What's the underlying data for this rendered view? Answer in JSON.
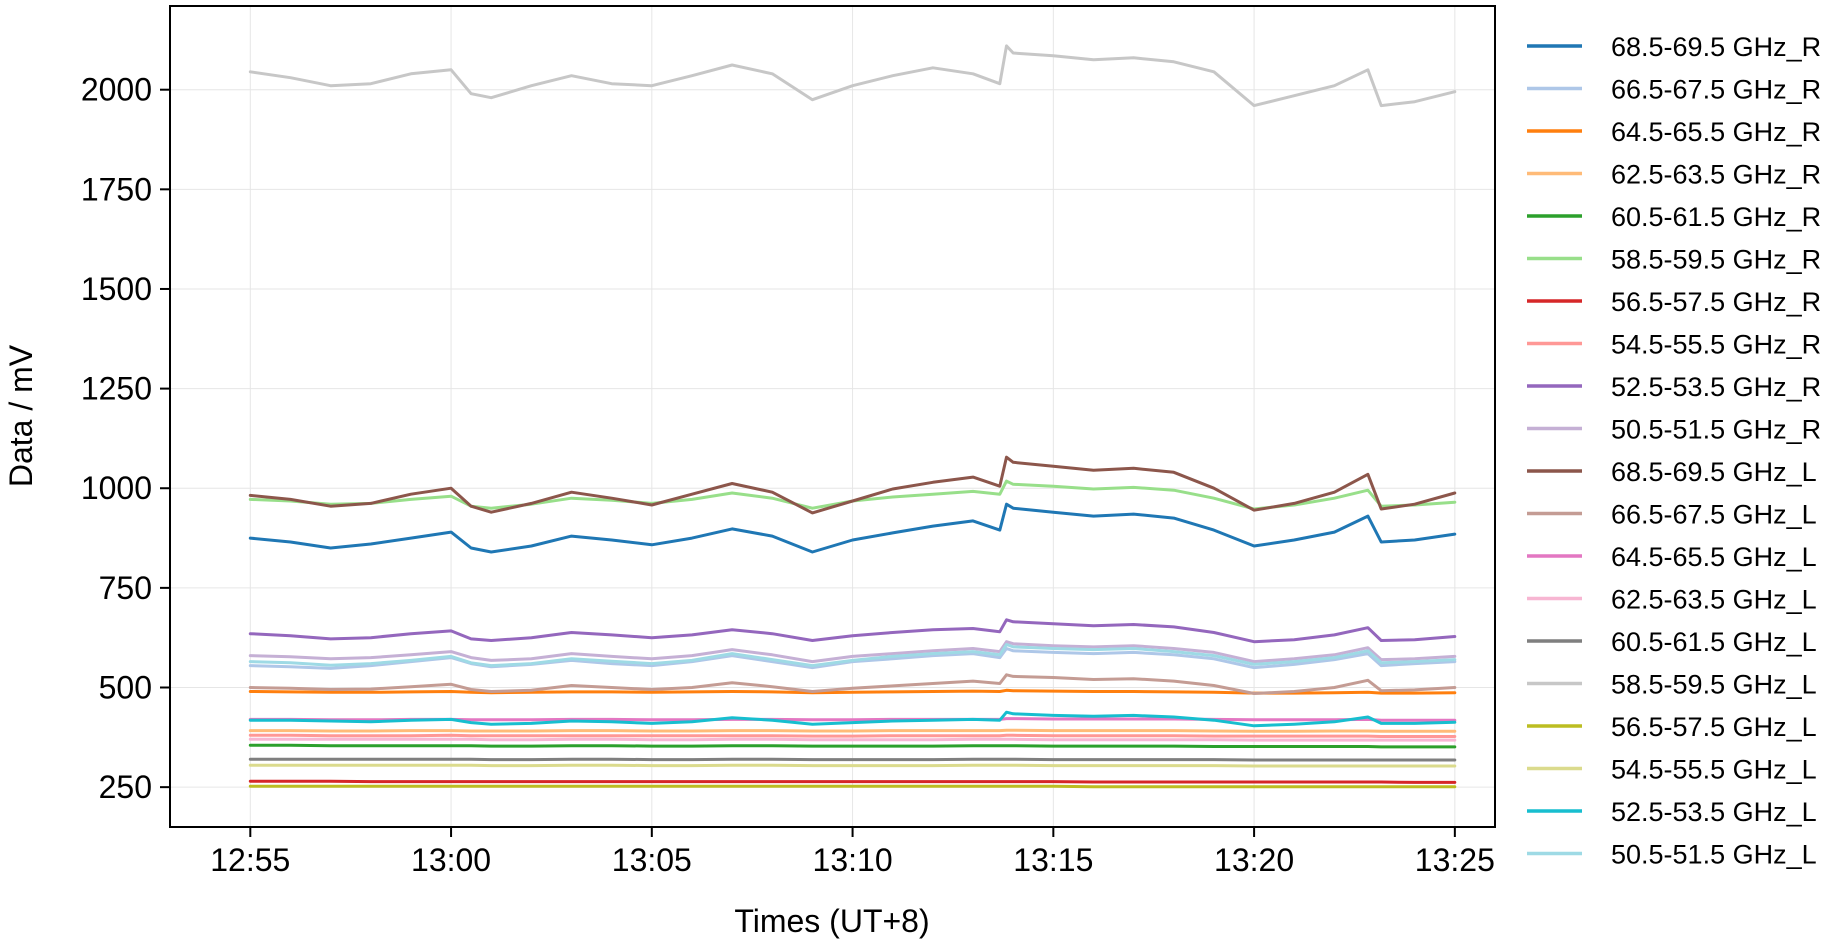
{
  "chart_data": {
    "type": "line",
    "xlabel": "Times (UT+8)",
    "ylabel": "Data / mV",
    "x_unit": "time (HH:MM)",
    "xlim": [
      "12:53",
      "13:26"
    ],
    "ylim": [
      150,
      2210
    ],
    "x_ticks": [
      "12:55",
      "13:00",
      "13:05",
      "13:10",
      "13:15",
      "13:20",
      "13:25"
    ],
    "y_ticks": [
      250,
      500,
      750,
      1000,
      1250,
      1500,
      1750,
      2000
    ],
    "grid": true,
    "legend_position": "right, outside plot",
    "x_sample": [
      "12:55",
      "12:56",
      "12:57",
      "12:58",
      "12:59",
      "13:00",
      "13:00:30",
      "13:01",
      "13:02",
      "13:03",
      "13:04",
      "13:05",
      "13:06",
      "13:07",
      "13:08",
      "13:09",
      "13:10",
      "13:11",
      "13:12",
      "13:13",
      "13:13:40",
      "13:13:50",
      "13:14",
      "13:15",
      "13:16",
      "13:17",
      "13:18",
      "13:19",
      "13:20",
      "13:21",
      "13:22",
      "13:22:50",
      "13:23:10",
      "13:24",
      "13:25"
    ],
    "series": [
      {
        "name": "68.5-69.5 GHz_R",
        "color": "#1f77b4",
        "values": [
          875,
          865,
          850,
          860,
          875,
          890,
          850,
          840,
          855,
          880,
          870,
          858,
          875,
          898,
          880,
          840,
          870,
          888,
          905,
          918,
          895,
          960,
          950,
          940,
          930,
          935,
          925,
          895,
          855,
          870,
          890,
          930,
          865,
          870,
          885
        ]
      },
      {
        "name": "66.5-67.5 GHz_R",
        "color": "#aec7e8",
        "values": [
          555,
          552,
          548,
          555,
          565,
          575,
          560,
          552,
          558,
          568,
          560,
          555,
          565,
          580,
          565,
          550,
          565,
          572,
          580,
          585,
          575,
          598,
          592,
          588,
          585,
          588,
          582,
          572,
          550,
          558,
          570,
          585,
          555,
          560,
          565
        ]
      },
      {
        "name": "64.5-65.5 GHz_R",
        "color": "#ff7f0e",
        "values": [
          490,
          489,
          488,
          488,
          489,
          490,
          488,
          487,
          488,
          489,
          489,
          488,
          489,
          490,
          489,
          487,
          488,
          489,
          490,
          491,
          490,
          493,
          492,
          491,
          490,
          490,
          489,
          488,
          486,
          486,
          487,
          488,
          486,
          486,
          487
        ]
      },
      {
        "name": "62.5-63.5 GHz_R",
        "color": "#ffbb78",
        "values": [
          392,
          392,
          391,
          391,
          392,
          392,
          391,
          391,
          391,
          392,
          392,
          391,
          391,
          392,
          392,
          391,
          391,
          392,
          392,
          392,
          392,
          393,
          393,
          392,
          392,
          392,
          392,
          391,
          390,
          390,
          391,
          391,
          390,
          390,
          390
        ]
      },
      {
        "name": "60.5-61.5 GHz_R",
        "color": "#2ca02c",
        "values": [
          355,
          355,
          354,
          354,
          354,
          354,
          354,
          353,
          353,
          354,
          354,
          353,
          353,
          354,
          354,
          353,
          353,
          353,
          353,
          354,
          354,
          354,
          354,
          353,
          353,
          353,
          353,
          352,
          352,
          352,
          352,
          352,
          351,
          351,
          351
        ]
      },
      {
        "name": "58.5-59.5 GHz_R",
        "color": "#98df8a",
        "values": [
          972,
          968,
          960,
          962,
          972,
          980,
          955,
          950,
          960,
          975,
          970,
          962,
          972,
          988,
          975,
          950,
          968,
          978,
          985,
          992,
          985,
          1018,
          1010,
          1005,
          998,
          1002,
          995,
          975,
          948,
          958,
          975,
          995,
          955,
          958,
          965
        ]
      },
      {
        "name": "56.5-57.5 GHz_R",
        "color": "#d62728",
        "values": [
          265,
          265,
          265,
          264,
          264,
          264,
          264,
          264,
          264,
          264,
          264,
          264,
          264,
          264,
          264,
          264,
          264,
          264,
          264,
          264,
          264,
          264,
          264,
          264,
          263,
          263,
          263,
          263,
          263,
          263,
          263,
          263,
          263,
          262,
          262
        ]
      },
      {
        "name": "54.5-55.5 GHz_R",
        "color": "#ff9896",
        "values": [
          380,
          380,
          379,
          379,
          379,
          380,
          379,
          379,
          379,
          379,
          379,
          379,
          379,
          379,
          379,
          378,
          378,
          379,
          379,
          379,
          379,
          380,
          380,
          379,
          379,
          379,
          379,
          378,
          378,
          378,
          378,
          378,
          377,
          377,
          377
        ]
      },
      {
        "name": "52.5-53.5 GHz_R",
        "color": "#9467bd",
        "values": [
          635,
          630,
          622,
          625,
          635,
          642,
          622,
          618,
          625,
          638,
          632,
          625,
          632,
          645,
          635,
          618,
          630,
          638,
          645,
          648,
          640,
          670,
          665,
          660,
          655,
          658,
          652,
          638,
          615,
          620,
          632,
          650,
          618,
          620,
          628
        ]
      },
      {
        "name": "50.5-51.5 GHz_R",
        "color": "#c5b0d5",
        "values": [
          580,
          577,
          572,
          575,
          582,
          590,
          575,
          568,
          572,
          585,
          578,
          572,
          580,
          595,
          582,
          565,
          578,
          585,
          592,
          598,
          590,
          615,
          610,
          605,
          602,
          605,
          598,
          588,
          565,
          572,
          582,
          600,
          570,
          572,
          578
        ]
      },
      {
        "name": "68.5-69.5 GHz_L",
        "color": "#8c564b",
        "values": [
          982,
          972,
          955,
          962,
          985,
          1000,
          955,
          940,
          962,
          990,
          975,
          958,
          985,
          1012,
          990,
          938,
          968,
          998,
          1015,
          1028,
          1005,
          1078,
          1065,
          1055,
          1045,
          1050,
          1040,
          1000,
          945,
          962,
          990,
          1035,
          948,
          960,
          988
        ]
      },
      {
        "name": "66.5-67.5 GHz_L",
        "color": "#c49c94",
        "values": [
          500,
          498,
          495,
          496,
          502,
          508,
          495,
          490,
          493,
          505,
          500,
          495,
          500,
          512,
          502,
          490,
          498,
          504,
          510,
          516,
          510,
          532,
          528,
          525,
          520,
          522,
          516,
          505,
          485,
          490,
          500,
          518,
          492,
          494,
          500
        ]
      },
      {
        "name": "64.5-65.5 GHz_L",
        "color": "#e377c2",
        "values": [
          420,
          420,
          419,
          419,
          420,
          420,
          419,
          419,
          419,
          420,
          420,
          419,
          419,
          420,
          420,
          419,
          419,
          420,
          420,
          420,
          420,
          422,
          422,
          421,
          421,
          421,
          421,
          420,
          419,
          419,
          419,
          420,
          418,
          418,
          418
        ]
      },
      {
        "name": "62.5-63.5 GHz_L",
        "color": "#f7b6d2",
        "values": [
          370,
          370,
          370,
          370,
          370,
          370,
          370,
          369,
          369,
          370,
          370,
          369,
          369,
          370,
          370,
          369,
          369,
          369,
          369,
          370,
          370,
          370,
          370,
          369,
          369,
          369,
          369,
          369,
          368,
          368,
          368,
          368,
          368,
          368,
          368
        ]
      },
      {
        "name": "60.5-61.5 GHz_L",
        "color": "#7f7f7f",
        "values": [
          320,
          320,
          320,
          320,
          320,
          320,
          320,
          319,
          319,
          320,
          320,
          319,
          319,
          320,
          320,
          319,
          319,
          319,
          319,
          320,
          320,
          320,
          320,
          319,
          319,
          319,
          319,
          319,
          318,
          318,
          318,
          318,
          318,
          318,
          318
        ]
      },
      {
        "name": "58.5-59.5 GHz_L",
        "color": "#c7c7c7",
        "values": [
          2045,
          2030,
          2010,
          2015,
          2040,
          2050,
          1990,
          1980,
          2010,
          2035,
          2015,
          2010,
          2035,
          2062,
          2040,
          1975,
          2010,
          2035,
          2055,
          2040,
          2015,
          2110,
          2092,
          2085,
          2075,
          2080,
          2070,
          2045,
          1960,
          1985,
          2010,
          2050,
          1960,
          1970,
          1995
        ]
      },
      {
        "name": "56.5-57.5 GHz_L",
        "color": "#bcbd22",
        "values": [
          252,
          252,
          252,
          252,
          252,
          252,
          252,
          252,
          252,
          252,
          252,
          252,
          252,
          252,
          252,
          252,
          252,
          252,
          252,
          252,
          252,
          252,
          252,
          252,
          251,
          251,
          251,
          251,
          251,
          251,
          251,
          251,
          251,
          251,
          251
        ]
      },
      {
        "name": "54.5-55.5 GHz_L",
        "color": "#dbdb8d",
        "values": [
          305,
          305,
          305,
          305,
          305,
          305,
          305,
          304,
          304,
          305,
          305,
          304,
          304,
          305,
          305,
          304,
          304,
          304,
          304,
          305,
          305,
          305,
          305,
          304,
          304,
          304,
          304,
          304,
          303,
          303,
          303,
          303,
          303,
          303,
          303
        ]
      },
      {
        "name": "52.5-53.5 GHz_L",
        "color": "#17becf",
        "values": [
          418,
          418,
          416,
          414,
          418,
          420,
          412,
          408,
          410,
          416,
          414,
          410,
          414,
          424,
          418,
          408,
          412,
          416,
          418,
          420,
          418,
          438,
          434,
          430,
          428,
          430,
          426,
          418,
          404,
          408,
          414,
          426,
          410,
          410,
          413
        ]
      },
      {
        "name": "50.5-51.5 GHz_L",
        "color": "#9edae5",
        "values": [
          565,
          562,
          556,
          560,
          568,
          578,
          562,
          555,
          560,
          572,
          566,
          560,
          568,
          585,
          570,
          555,
          568,
          578,
          585,
          590,
          582,
          608,
          602,
          598,
          595,
          598,
          590,
          580,
          558,
          565,
          575,
          592,
          562,
          565,
          570
        ]
      }
    ]
  }
}
